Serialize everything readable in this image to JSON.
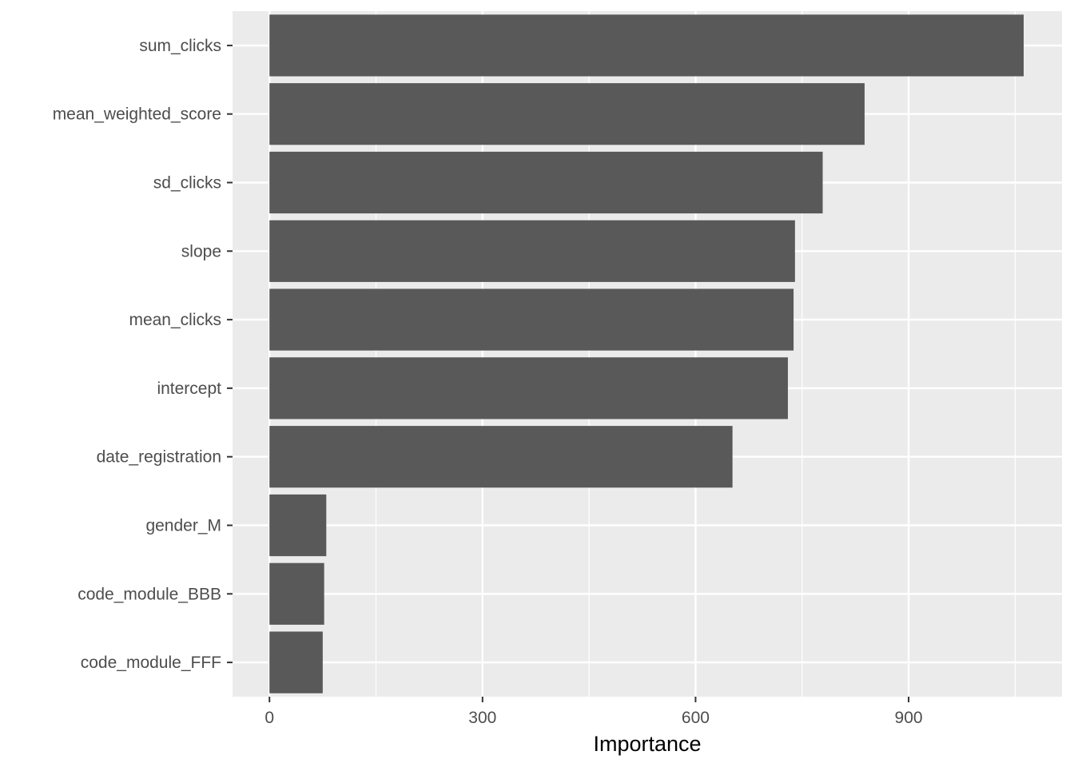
{
  "chart_data": {
    "type": "bar",
    "orientation": "horizontal",
    "categories": [
      "sum_clicks",
      "mean_weighted_score",
      "sd_clicks",
      "slope",
      "mean_clicks",
      "intercept",
      "date_registration",
      "gender_M",
      "code_module_BBB",
      "code_module_FFF"
    ],
    "values": [
      1062,
      838,
      779,
      740,
      738,
      730,
      652,
      80,
      77,
      75
    ],
    "xlabel": "Importance",
    "ylabel": "",
    "xlim": [
      -52,
      1116
    ],
    "x_ticks": [
      0,
      300,
      600,
      900
    ],
    "x_tick_labels": [
      "0",
      "300",
      "600",
      "900"
    ],
    "grid": true,
    "bar_color": "#595959",
    "panel_background": "#ebebeb",
    "grid_color": "#ffffff"
  }
}
